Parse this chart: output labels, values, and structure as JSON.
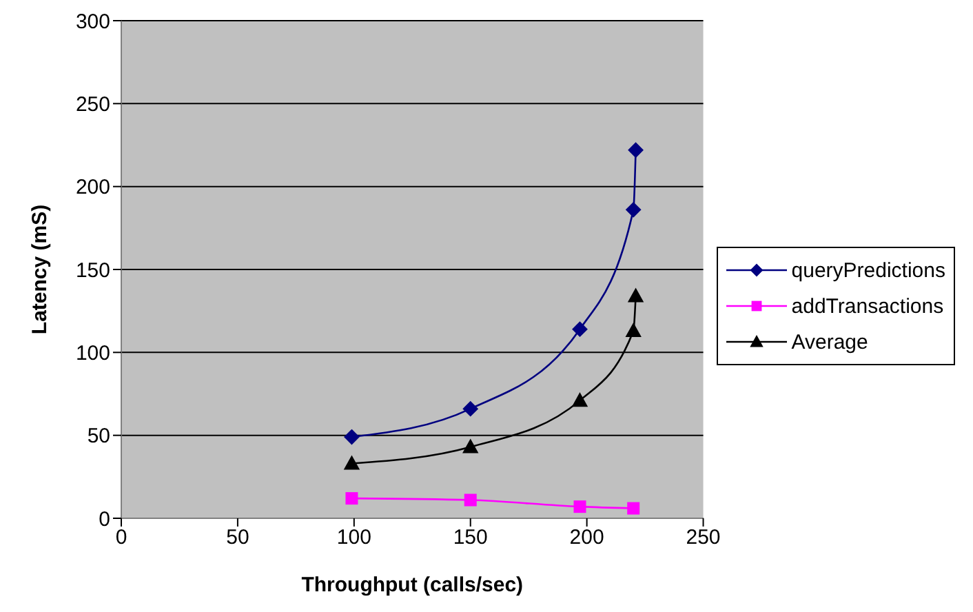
{
  "chart_data": {
    "type": "line",
    "xlabel": "Throughput (calls/sec)",
    "ylabel": "Latency (mS)",
    "xlim": [
      0,
      250
    ],
    "xticks": [
      0,
      50,
      100,
      150,
      200,
      250
    ],
    "ylim": [
      0,
      300
    ],
    "yticks": [
      0,
      50,
      100,
      150,
      200,
      250,
      300
    ],
    "grid": "y",
    "legend": "right",
    "series": [
      {
        "name": "queryPredictions",
        "color": "#000080",
        "marker": "diamond",
        "x": [
          99,
          150,
          197,
          220,
          221
        ],
        "values": [
          49,
          66,
          114,
          186,
          222
        ]
      },
      {
        "name": "addTransactions",
        "color": "#ff00ff",
        "marker": "square",
        "x": [
          99,
          150,
          197,
          220
        ],
        "values": [
          12,
          11,
          7,
          6
        ]
      },
      {
        "name": "Average",
        "color": "#000000",
        "marker": "triangle",
        "x": [
          99,
          150,
          197,
          220,
          221
        ],
        "values": [
          33,
          43,
          71,
          113,
          134
        ]
      }
    ]
  }
}
